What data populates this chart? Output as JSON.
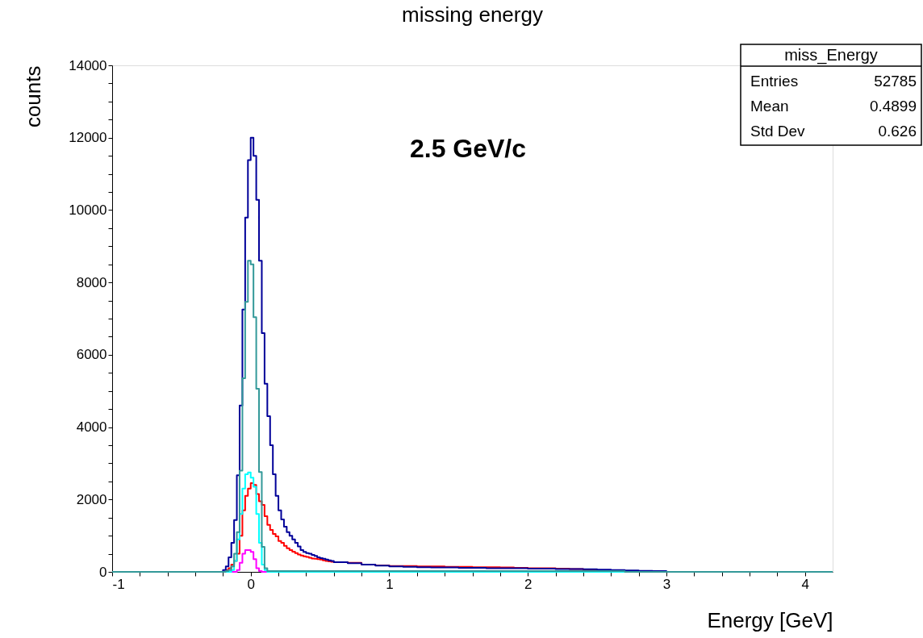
{
  "chart_data": {
    "type": "histogram",
    "title": "missing energy",
    "xlabel": "Energy [GeV]",
    "ylabel": "counts",
    "annotations": [
      "2.5 GeV/c",
      "miss_Energy",
      "Entries",
      "52785",
      "Mean",
      "0.4899",
      "Std Dev",
      "0.626"
    ],
    "bins": [
      -1,
      -0.2,
      -0.18,
      -0.16,
      -0.14,
      -0.12,
      -0.1,
      -0.08,
      -0.06,
      -0.04,
      -0.02,
      0,
      0.02,
      0.04,
      0.06,
      0.08,
      0.1,
      0.12,
      0.14,
      0.16,
      0.18,
      0.2,
      0.22,
      0.24,
      0.26,
      0.28,
      0.3,
      0.32,
      0.34,
      0.36,
      0.38,
      0.4,
      0.42,
      0.44,
      0.46,
      0.48,
      0.5,
      0.52,
      0.54,
      0.56,
      0.58,
      0.6,
      0.7,
      0.8,
      0.9,
      1.0,
      1.1,
      1.2,
      1.3,
      1.4,
      1.5,
      1.6,
      1.7,
      1.8,
      1.9,
      2.0,
      2.1,
      2.2,
      2.3,
      2.4,
      2.5,
      2.6,
      2.7,
      2.8,
      2.9,
      3.0,
      4.2
    ],
    "series": [
      {
        "color": "#ff0000",
        "values": [
          0,
          0,
          50,
          100,
          200,
          300,
          500,
          1000,
          1700,
          2100,
          2300,
          2450,
          2400,
          2150,
          1950,
          1850,
          1540,
          1300,
          1160,
          1050,
          980,
          850,
          800,
          720,
          650,
          600,
          560,
          520,
          480,
          450,
          430,
          410,
          390,
          370,
          360,
          350,
          340,
          320,
          300,
          290,
          280,
          270,
          250,
          200,
          180,
          160,
          160,
          150,
          150,
          140,
          140,
          130,
          130,
          120,
          110,
          100,
          100,
          90,
          80,
          60,
          40,
          20,
          10,
          0,
          0,
          0
        ]
      },
      {
        "color": "#ff00ff",
        "values": [
          0,
          0,
          0,
          0,
          0,
          0,
          50,
          250,
          500,
          600,
          600,
          550,
          350,
          100,
          20,
          0,
          0,
          0,
          0,
          0,
          0,
          0,
          0,
          0,
          0,
          0,
          0,
          0,
          0,
          0,
          0,
          0,
          0,
          0,
          0,
          0,
          0,
          0,
          0,
          0,
          0,
          0,
          0,
          0,
          0,
          0,
          0,
          0,
          0,
          0,
          0,
          0,
          0,
          0,
          0,
          0,
          0,
          0,
          0,
          0,
          0,
          0,
          0,
          0,
          0,
          0
        ]
      },
      {
        "color": "#00ffff",
        "values": [
          0,
          0,
          0,
          0,
          50,
          300,
          900,
          1600,
          2300,
          2700,
          2750,
          2600,
          2350,
          1600,
          800,
          200,
          50,
          0,
          0,
          0,
          0,
          0,
          0,
          0,
          0,
          0,
          0,
          0,
          0,
          0,
          0,
          0,
          0,
          0,
          0,
          0,
          0,
          0,
          0,
          0,
          0,
          0,
          0,
          0,
          0,
          0,
          0,
          0,
          0,
          0,
          0,
          0,
          0,
          0,
          0,
          0,
          0,
          0,
          0,
          0,
          0,
          0,
          0,
          0,
          0,
          0
        ]
      },
      {
        "color": "#000099",
        "values": [
          0,
          50,
          150,
          400,
          800,
          1430,
          2670,
          4600,
          7250,
          9790,
          11380,
          12000,
          11500,
          10280,
          8600,
          6600,
          5200,
          4300,
          3500,
          2700,
          2100,
          1700,
          1450,
          1250,
          1100,
          1000,
          900,
          800,
          700,
          600,
          550,
          520,
          500,
          470,
          440,
          400,
          380,
          360,
          340,
          320,
          300,
          270,
          240,
          200,
          170,
          150,
          140,
          130,
          120,
          120,
          110,
          110,
          100,
          100,
          100,
          90,
          90,
          80,
          80,
          70,
          60,
          50,
          40,
          30,
          20,
          0
        ]
      },
      {
        "color": "#339999",
        "values": [
          0,
          0,
          20,
          50,
          150,
          500,
          1100,
          2800,
          5350,
          7460,
          8600,
          8500,
          7040,
          5060,
          2760,
          690,
          100,
          20,
          20,
          20,
          20,
          20,
          20,
          20,
          20,
          20,
          20,
          20,
          20,
          20,
          20,
          20,
          20,
          20,
          20,
          20,
          20,
          20,
          20,
          20,
          20,
          20,
          20,
          20,
          20,
          20,
          20,
          20,
          20,
          20,
          20,
          20,
          20,
          20,
          20,
          20,
          20,
          20,
          20,
          20,
          20,
          20,
          0,
          0,
          0,
          0
        ]
      }
    ],
    "xlim": [
      -1,
      4.2
    ],
    "ylim": [
      0,
      14000
    ],
    "xticks": [
      -1,
      {
        "value": -0.8,
        "label": null
      },
      {
        "value": -0.6,
        "label": null
      },
      {
        "value": -0.4,
        "label": null
      },
      {
        "value": -0.2,
        "label": null
      },
      0,
      {
        "value": 0.2,
        "label": null
      },
      {
        "value": 0.4,
        "label": null
      },
      {
        "value": 0.6,
        "label": null
      },
      {
        "value": 0.8,
        "label": null
      },
      1,
      {
        "value": 1.2,
        "label": null
      },
      {
        "value": 1.4,
        "label": null
      },
      {
        "value": 1.6,
        "label": null
      },
      {
        "value": 1.8,
        "label": null
      },
      2,
      {
        "value": 2.2,
        "label": null
      },
      {
        "value": 2.4,
        "label": null
      },
      {
        "value": 2.6,
        "label": null
      },
      {
        "value": 2.8,
        "label": null
      },
      3,
      {
        "value": 3.2,
        "label": null
      },
      {
        "value": 3.4,
        "label": null
      },
      {
        "value": 3.6,
        "label": null
      },
      {
        "value": 3.8,
        "label": null
      },
      4
    ],
    "yticks": [
      0,
      {
        "value": 500,
        "label": null
      },
      {
        "value": 1000,
        "label": null
      },
      {
        "value": 1500,
        "label": null
      },
      2000,
      {
        "value": 2500,
        "label": null
      },
      {
        "value": 3000,
        "label": null
      },
      {
        "value": 3500,
        "label": null
      },
      4000,
      {
        "value": 4500,
        "label": null
      },
      {
        "value": 5000,
        "label": null
      },
      {
        "value": 5500,
        "label": null
      },
      6000,
      {
        "value": 6500,
        "label": null
      },
      {
        "value": 7000,
        "label": null
      },
      {
        "value": 7500,
        "label": null
      },
      8000,
      {
        "value": 8500,
        "label": null
      },
      {
        "value": 9000,
        "label": null
      },
      {
        "value": 9500,
        "label": null
      },
      10000,
      {
        "value": 10500,
        "label": null
      },
      {
        "value": 11000,
        "label": null
      },
      {
        "value": 11500,
        "label": null
      },
      12000,
      {
        "value": 12500,
        "label": null
      },
      {
        "value": 13000,
        "label": null
      },
      {
        "value": 13500,
        "label": null
      },
      14000
    ],
    "grid": false,
    "legend": false
  }
}
